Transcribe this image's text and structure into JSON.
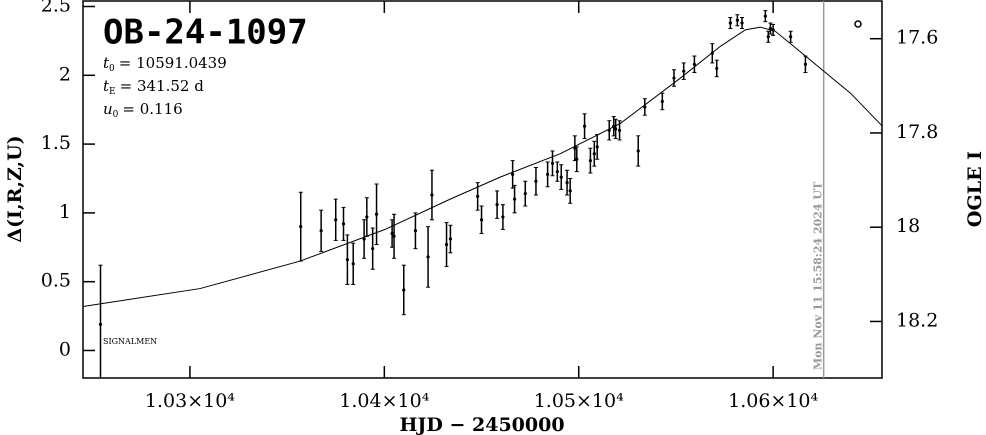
{
  "chart_data": {
    "type": "scatter",
    "title": "OB-24-1097",
    "params": [
      {
        "symbol": "t",
        "subscript": "0",
        "text": "= 10591.0439"
      },
      {
        "symbol": "t",
        "subscript": "E",
        "text": "= 341.52 d"
      },
      {
        "symbol": "u",
        "subscript": "0",
        "text": "= 0.116"
      }
    ],
    "xlabel": "HJD − 2450000",
    "ylabel": "Δ(I,R,Z,U)",
    "y2label": "OGLE I",
    "corner_note": "SIGNALMEN",
    "marker_line": {
      "x": 10626,
      "label": "Mon Nov 11 15:58:24 2024 UT",
      "color": "#999999"
    },
    "xlim": [
      10245,
      10656
    ],
    "xticks": [
      {
        "value": 10300,
        "label": "1.03×10⁴"
      },
      {
        "value": 10400,
        "label": "1.04×10⁴"
      },
      {
        "value": 10500,
        "label": "1.05×10⁴"
      },
      {
        "value": 10600,
        "label": "1.06×10⁴"
      }
    ],
    "ylim": [
      -0.2,
      2.54
    ],
    "yticks": [
      0,
      0.5,
      1,
      1.5,
      2,
      2.5
    ],
    "y2lim": [
      18.32,
      17.52
    ],
    "y2ticks": [
      17.6,
      17.8,
      18,
      18.2
    ],
    "series": [
      {
        "color": "#000000",
        "x": [
          10254,
          10357,
          10367.5,
          10375,
          10379,
          10381,
          10384,
          10389.6,
          10391,
          10394,
          10396,
          10404,
          10405,
          10410,
          10416,
          10422.5,
          10424.5,
          10432,
          10434,
          10448,
          10450,
          10458,
          10461,
          10466,
          10467,
          10472.5,
          10478,
          10484,
          10486.5,
          10489,
          10491,
          10494,
          10495.6,
          10498,
          10499,
          10503,
          10506,
          10508,
          10509.5,
          10515.7,
          10518,
          10519,
          10521,
          10530.6,
          10534,
          10543,
          10549,
          10554,
          10559.5,
          10568.7,
          10571,
          10578,
          10581.6,
          10584,
          10596,
          10597.5,
          10598.6,
          10600,
          10609,
          10616.6
        ],
        "values": [
          0.19,
          0.9,
          0.87,
          0.95,
          0.92,
          0.66,
          0.63,
          0.81,
          0.97,
          0.74,
          0.99,
          0.85,
          0.83,
          0.44,
          0.87,
          0.68,
          1.13,
          0.77,
          0.81,
          1.12,
          0.95,
          1.06,
          0.97,
          1.28,
          1.1,
          1.14,
          1.23,
          1.28,
          1.36,
          1.3,
          1.26,
          1.22,
          1.16,
          1.47,
          1.39,
          1.63,
          1.38,
          1.43,
          1.48,
          1.6,
          1.63,
          1.61,
          1.6,
          1.45,
          1.77,
          1.81,
          1.98,
          2.03,
          2.08,
          2.16,
          2.05,
          2.38,
          2.4,
          2.38,
          2.43,
          2.28,
          2.34,
          2.33,
          2.28,
          2.08
        ],
        "errors": [
          0.43,
          0.25,
          0.15,
          0.15,
          0.12,
          0.18,
          0.15,
          0.14,
          0.14,
          0.15,
          0.22,
          0.1,
          0.16,
          0.18,
          0.13,
          0.22,
          0.18,
          0.16,
          0.1,
          0.1,
          0.1,
          0.1,
          0.09,
          0.1,
          0.1,
          0.09,
          0.1,
          0.09,
          0.09,
          0.07,
          0.09,
          0.09,
          0.09,
          0.09,
          0.09,
          0.09,
          0.09,
          0.09,
          0.09,
          0.07,
          0.07,
          0.07,
          0.07,
          0.11,
          0.06,
          0.06,
          0.06,
          0.06,
          0.06,
          0.07,
          0.06,
          0.04,
          0.04,
          0.04,
          0.04,
          0.04,
          0.04,
          0.04,
          0.04,
          0.06
        ]
      }
    ],
    "model": {
      "color": "#000000",
      "x": [
        10245,
        10305.2,
        10356.7,
        10400.4,
        10433.9,
        10459.6,
        10490.5,
        10521.4,
        10552.3,
        10572.8,
        10585.7,
        10593.4,
        10601.1,
        10608.9,
        10624.3,
        10639.8,
        10656.2
      ],
      "values": [
        0.32,
        0.45,
        0.65,
        0.88,
        1.1,
        1.26,
        1.43,
        1.65,
        1.98,
        2.21,
        2.33,
        2.35,
        2.32,
        2.23,
        2.05,
        1.87,
        1.63
      ]
    }
  }
}
